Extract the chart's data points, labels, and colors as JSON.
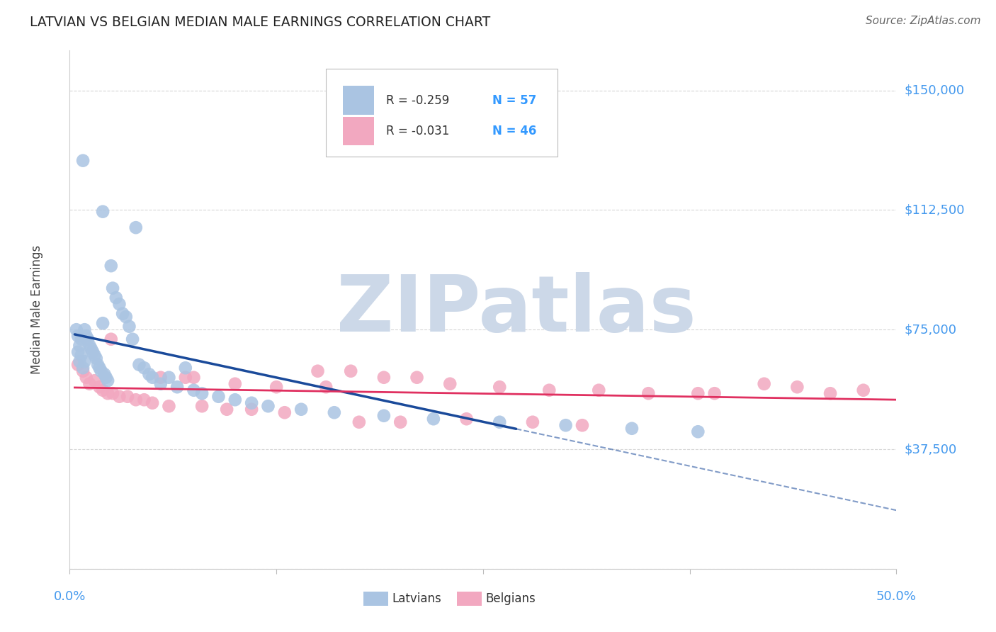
{
  "title": "LATVIAN VS BELGIAN MEDIAN MALE EARNINGS CORRELATION CHART",
  "source": "Source: ZipAtlas.com",
  "ylabel": "Median Male Earnings",
  "xlim": [
    0.0,
    0.5
  ],
  "ylim": [
    0,
    162500
  ],
  "yticks": [
    0,
    37500,
    75000,
    112500,
    150000
  ],
  "ytick_labels": [
    "",
    "$37,500",
    "$75,000",
    "$112,500",
    "$150,000"
  ],
  "latvian_color": "#aac4e2",
  "belgian_color": "#f2a8c0",
  "latvian_line_color": "#1a4a9a",
  "belgian_line_color": "#e03060",
  "background_color": "#ffffff",
  "grid_color": "#cccccc",
  "watermark_text": "ZIPatlas",
  "watermark_color": "#ccd8e8",
  "legend_r_latvian": "R = -0.259",
  "legend_n_latvian": "N = 57",
  "legend_r_belgian": "R = -0.031",
  "legend_n_belgian": "N = 46",
  "latvian_x": [
    0.004,
    0.005,
    0.005,
    0.006,
    0.006,
    0.007,
    0.007,
    0.008,
    0.008,
    0.009,
    0.009,
    0.01,
    0.011,
    0.012,
    0.013,
    0.014,
    0.015,
    0.016,
    0.017,
    0.018,
    0.019,
    0.02,
    0.021,
    0.022,
    0.023,
    0.025,
    0.026,
    0.028,
    0.03,
    0.032,
    0.034,
    0.036,
    0.038,
    0.04,
    0.042,
    0.045,
    0.048,
    0.05,
    0.055,
    0.06,
    0.065,
    0.07,
    0.075,
    0.08,
    0.09,
    0.1,
    0.11,
    0.12,
    0.14,
    0.16,
    0.19,
    0.22,
    0.26,
    0.3,
    0.34,
    0.38,
    0.02
  ],
  "latvian_y": [
    75000,
    73000,
    68000,
    70000,
    65000,
    72000,
    67000,
    63000,
    128000,
    65000,
    75000,
    73000,
    72000,
    70000,
    69000,
    68000,
    67000,
    66000,
    64000,
    63000,
    62000,
    77000,
    61000,
    60000,
    59000,
    95000,
    88000,
    85000,
    83000,
    80000,
    79000,
    76000,
    72000,
    107000,
    64000,
    63000,
    61000,
    60000,
    58000,
    60000,
    57000,
    63000,
    56000,
    55000,
    54000,
    53000,
    52000,
    51000,
    50000,
    49000,
    48000,
    47000,
    46000,
    45000,
    44000,
    43000,
    112000
  ],
  "belgian_x": [
    0.005,
    0.008,
    0.01,
    0.012,
    0.015,
    0.018,
    0.02,
    0.023,
    0.026,
    0.03,
    0.035,
    0.04,
    0.045,
    0.05,
    0.06,
    0.07,
    0.08,
    0.095,
    0.11,
    0.13,
    0.15,
    0.17,
    0.19,
    0.21,
    0.23,
    0.26,
    0.29,
    0.32,
    0.35,
    0.38,
    0.42,
    0.46,
    0.025,
    0.055,
    0.075,
    0.1,
    0.125,
    0.155,
    0.175,
    0.2,
    0.24,
    0.28,
    0.31,
    0.39,
    0.44,
    0.48
  ],
  "belgian_y": [
    64000,
    62000,
    60000,
    58000,
    59000,
    57000,
    56000,
    55000,
    55000,
    54000,
    54000,
    53000,
    53000,
    52000,
    51000,
    60000,
    51000,
    50000,
    50000,
    49000,
    62000,
    62000,
    60000,
    60000,
    58000,
    57000,
    56000,
    56000,
    55000,
    55000,
    58000,
    55000,
    72000,
    60000,
    60000,
    58000,
    57000,
    57000,
    46000,
    46000,
    47000,
    46000,
    45000,
    55000,
    57000,
    56000
  ],
  "lv_line_x0": 0.003,
  "lv_line_x_solid_end": 0.27,
  "lv_line_x_dash_end": 0.5,
  "be_line_x0": 0.003,
  "be_line_x1": 0.5
}
